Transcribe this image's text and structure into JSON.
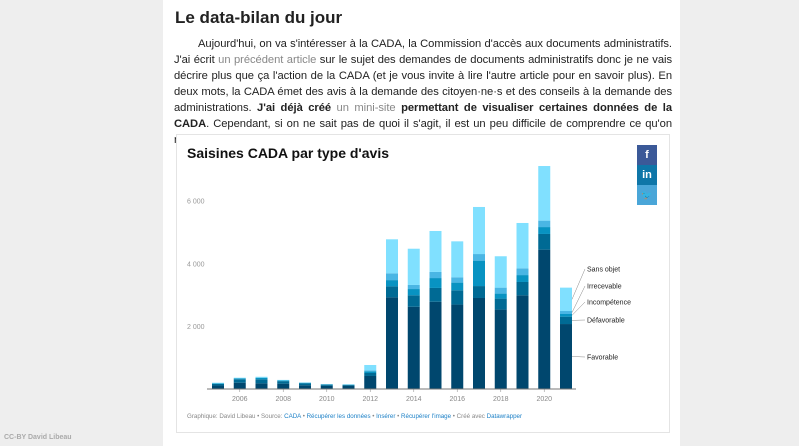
{
  "article": {
    "heading": "Le data-bilan du jour",
    "p1": "Aujourd'hui, on va s'intéresser à la CADA, la Commission d'accès aux documents administratifs. J'ai écrit ",
    "link1": "un précédent article",
    "p2": " sur le sujet des demandes de documents administratifs donc je ne vais décrire plus que ça l'action de la CADA (et je vous invite à lire l'autre article pour en savoir plus). En deux mots, la CADA émet des avis à la demande des citoyen·ne·s et des conseils à la demande des administrations. ",
    "bold1": "J'ai déjà créé",
    "link2": " un mini-site",
    "bold2": " permettant de visualiser certaines données de la CADA",
    "p3": ". Cependant, si on ne sait pas de quoi il s'agit, il est un peu difficile de comprendre ce qu'on regarde… Alors je vous explique !"
  },
  "social": {
    "facebook": "f",
    "linkedin": "in",
    "twitter": "🐦"
  },
  "footer": {
    "prefix": "Graphique: David Libeau • Source: ",
    "source": "CADA",
    "sep1": " • ",
    "data_link": "Récupérer les données",
    "sep2": " • ",
    "embed": "Insérer",
    "sep3": " • ",
    "image": "Récupérer l'image",
    "sep4": " • Créé avec ",
    "tool": "Datawrapper"
  },
  "credit": "CC-BY David Libeau",
  "chart_data": {
    "type": "bar",
    "stacked": true,
    "title": "Saisines CADA par type d'avis",
    "categories": [
      2005,
      2006,
      2007,
      2008,
      2009,
      2010,
      2011,
      2012,
      2013,
      2014,
      2015,
      2016,
      2017,
      2018,
      2019,
      2020,
      2021
    ],
    "x_tick_labels": [
      "2006",
      "2008",
      "2010",
      "2012",
      "2014",
      "2016",
      "2018",
      "2020"
    ],
    "y_ticks": [
      {
        "v": 2000,
        "label": "2 000"
      },
      {
        "v": 4000,
        "label": "4 000"
      },
      {
        "v": 6000,
        "label": "6 000"
      }
    ],
    "ylim": [
      0,
      7200
    ],
    "series": [
      {
        "name": "Favorable",
        "color": "#00476e",
        "values": [
          110,
          200,
          180,
          170,
          120,
          100,
          100,
          415,
          2920,
          2620,
          2780,
          2690,
          2900,
          2530,
          2985,
          4440,
          2070
        ]
      },
      {
        "name": "Défavorable",
        "color": "#006a94",
        "values": [
          50,
          110,
          130,
          80,
          60,
          40,
          30,
          95,
          350,
          365,
          440,
          455,
          380,
          350,
          425,
          500,
          235
        ]
      },
      {
        "name": "Incompétence",
        "color": "#0893c2",
        "values": [
          20,
          30,
          50,
          20,
          20,
          10,
          10,
          55,
          200,
          200,
          315,
          245,
          810,
          160,
          220,
          220,
          85
        ]
      },
      {
        "name": "Irrecevable",
        "color": "#4ab6e4",
        "values": [
          0,
          0,
          0,
          0,
          0,
          0,
          0,
          30,
          215,
          130,
          195,
          170,
          210,
          190,
          215,
          205,
          95
        ]
      },
      {
        "name": "Sans objet",
        "color": "#80e0ff",
        "values": [
          20,
          20,
          30,
          20,
          10,
          10,
          10,
          170,
          1085,
          1155,
          1305,
          1145,
          1500,
          1000,
          1445,
          1740,
          745
        ]
      }
    ]
  }
}
